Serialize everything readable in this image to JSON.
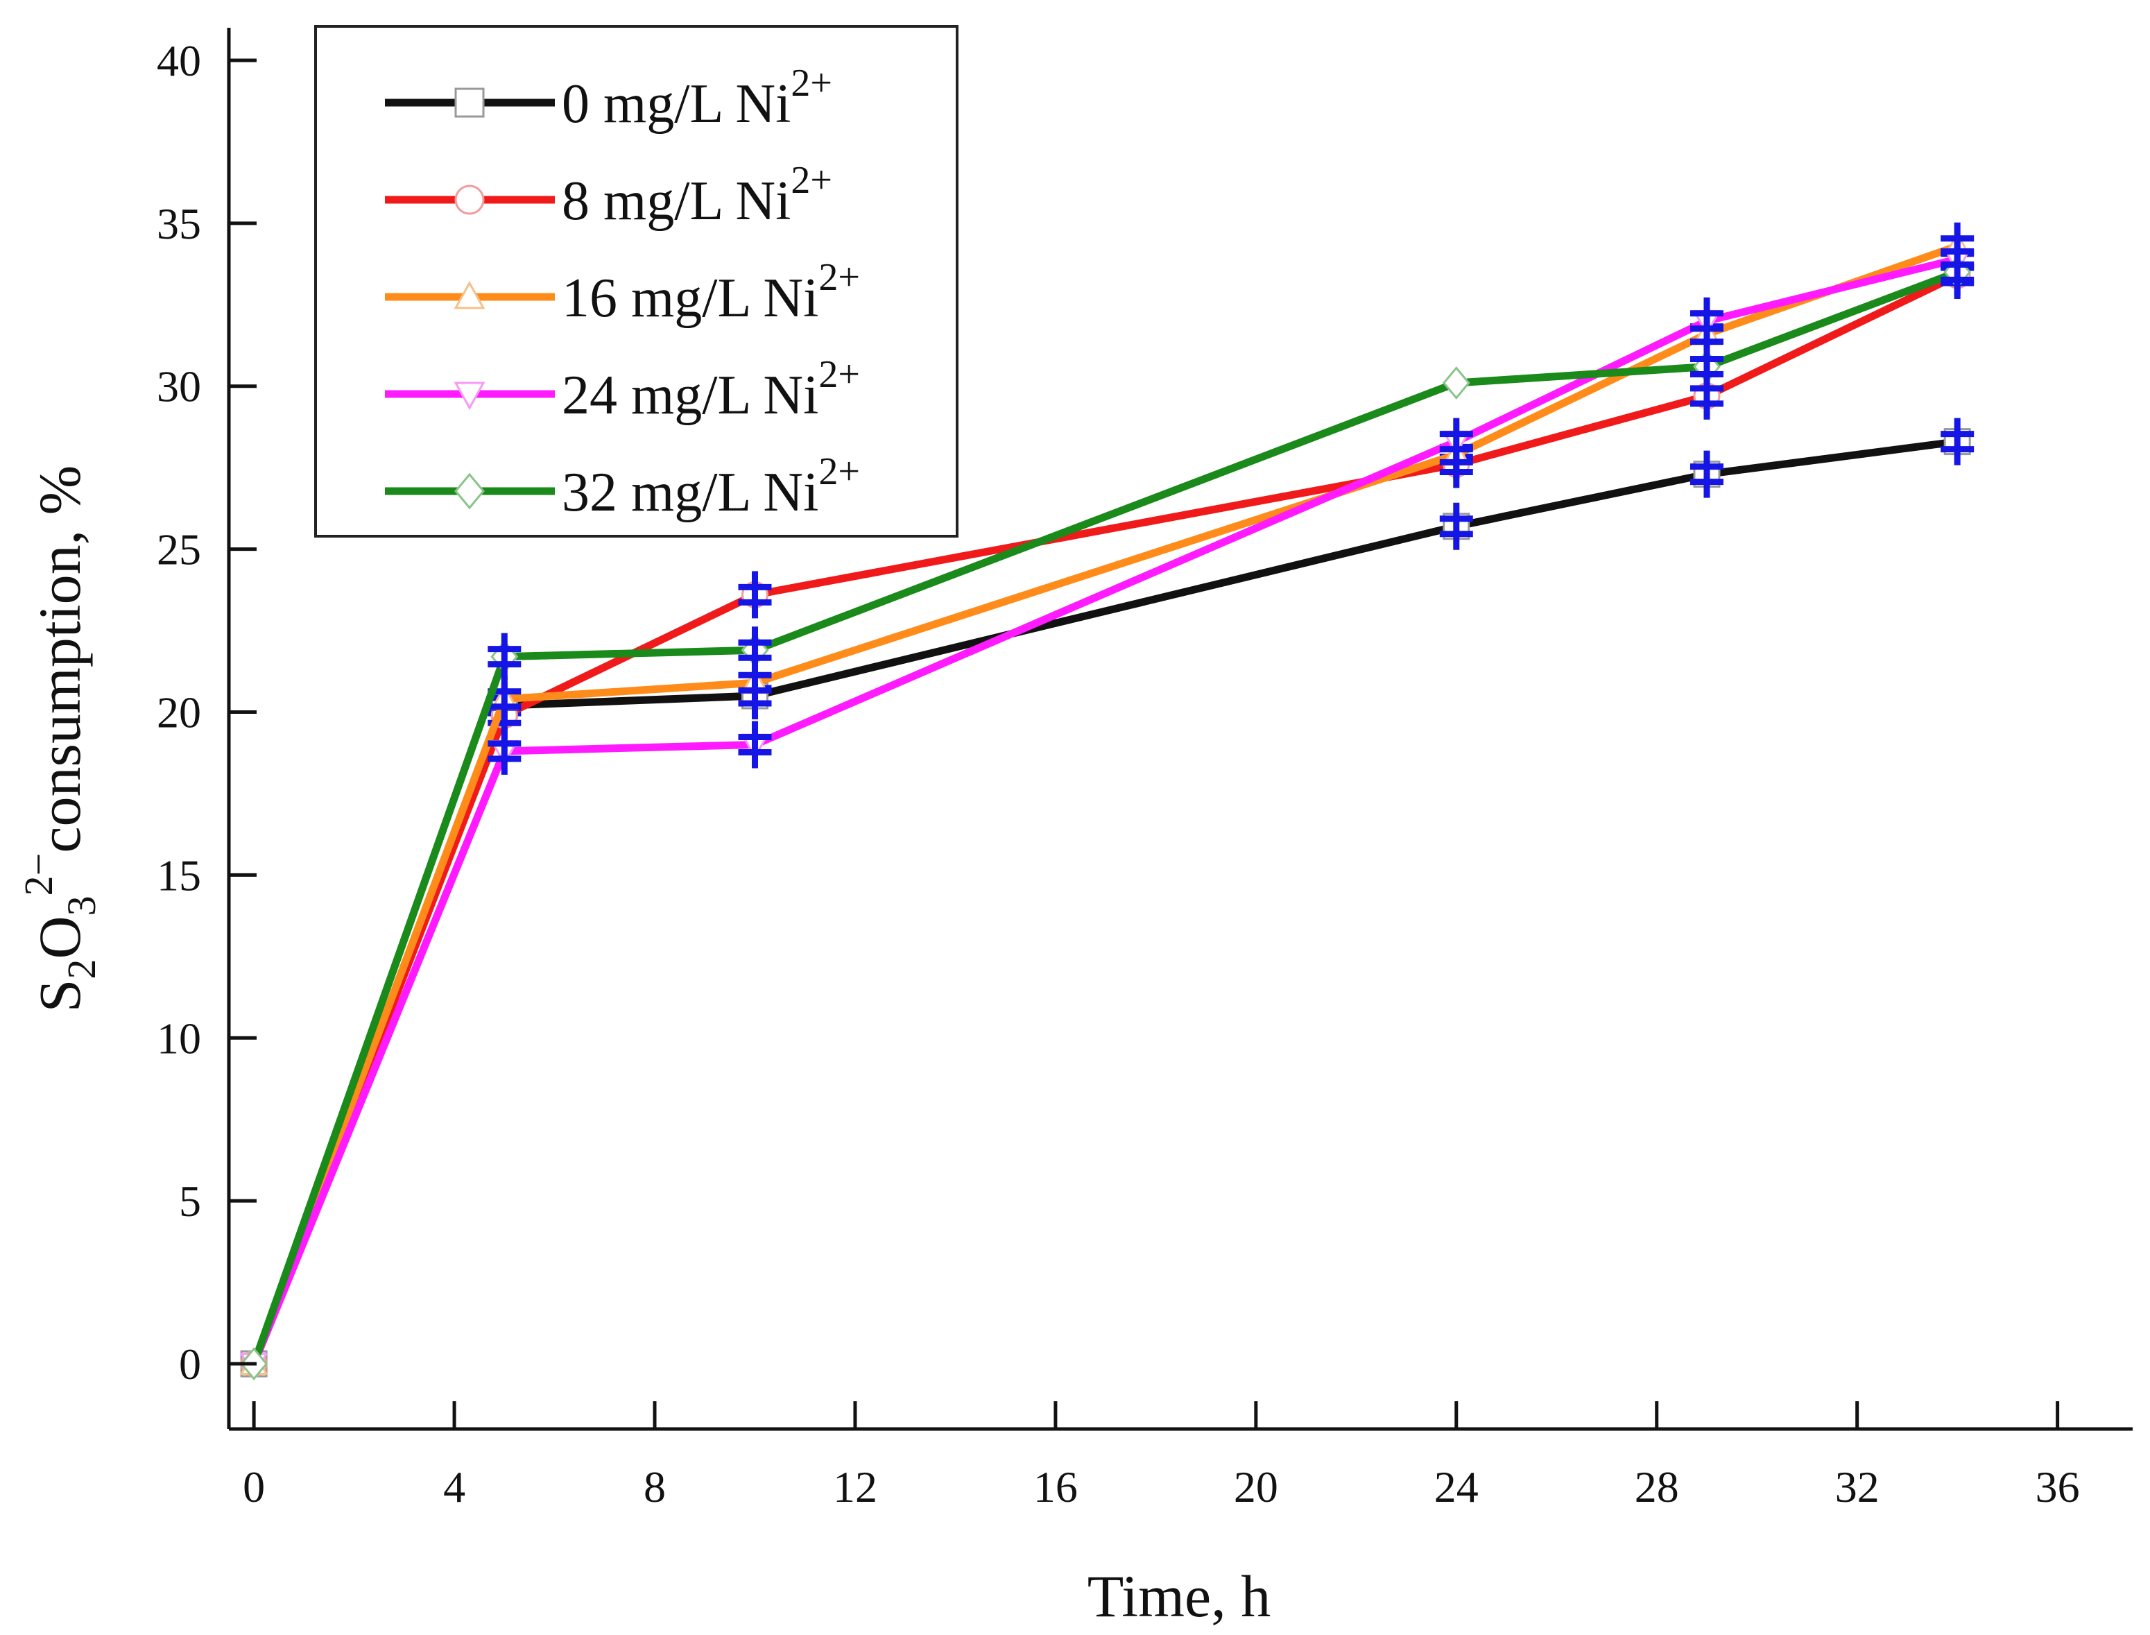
{
  "chart_data": {
    "type": "line",
    "title": "",
    "xlabel": "Time, h",
    "ylabel": {
      "parts": [
        {
          "text": "S",
          "style": "normal"
        },
        {
          "text": "2",
          "style": "sub"
        },
        {
          "text": "O",
          "style": "normal"
        },
        {
          "text": "3",
          "style": "sub"
        },
        {
          "text": "2−",
          "style": "sup"
        },
        {
          "text": "consumption, %",
          "style": "normal"
        }
      ]
    },
    "xlim": [
      -0.5,
      37.5
    ],
    "ylim": [
      -2,
      41
    ],
    "xticks": [
      0,
      4,
      8,
      12,
      16,
      20,
      24,
      28,
      32,
      36
    ],
    "yticks": [
      0,
      5,
      10,
      15,
      20,
      25,
      30,
      35,
      40
    ],
    "x": [
      0,
      5,
      10,
      24,
      29,
      34
    ],
    "grid": false,
    "legend_position": "top-left",
    "error_marker_color": "#1515e6",
    "series": [
      {
        "name": "0 mg/L Ni",
        "sup": "2+",
        "color": "#111111",
        "marker": "square",
        "values": [
          0,
          20.2,
          20.5,
          25.7,
          27.3,
          28.3
        ]
      },
      {
        "name": "8 mg/L Ni",
        "sup": "2+",
        "color": "#f01a1a",
        "marker": "circle",
        "values": [
          0,
          19.9,
          23.6,
          27.6,
          29.7,
          33.4
        ]
      },
      {
        "name": "16 mg/L Ni",
        "sup": "2+",
        "color": "#ff8c1a",
        "marker": "triangle-up",
        "values": [
          0,
          20.4,
          20.9,
          27.9,
          31.6,
          34.3
        ]
      },
      {
        "name": "24 mg/L Ni",
        "sup": "2+",
        "color": "#ff1aff",
        "marker": "triangle-down",
        "values": [
          0,
          18.8,
          19.0,
          28.3,
          32.0,
          33.9
        ]
      },
      {
        "name": "32 mg/L Ni",
        "sup": "2+",
        "color": "#1a8a1a",
        "marker": "diamond",
        "values": [
          0,
          21.7,
          21.9,
          30.1,
          30.6,
          33.5
        ]
      }
    ]
  }
}
